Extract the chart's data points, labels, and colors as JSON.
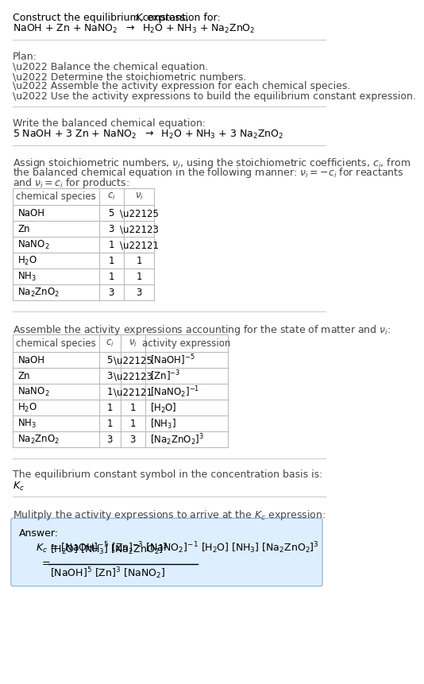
{
  "bg_color": "#ffffff",
  "answer_box_color": "#ddeeff",
  "answer_box_border": "#99bbdd",
  "table_line_color": "#bbbbbb",
  "text_color": "#000000",
  "gray_text_color": "#444444",
  "font_size": 9.0,
  "small_font_size": 8.5,
  "title1": "Construct the equilibrium constant, ",
  "title_K": "$K$",
  "title2": ", expression for:",
  "unbalanced_eq": "NaOH + Zn + NaNO$_2$  $\\rightarrow$  H$_2$O + NH$_3$ + Na$_2$ZnO$_2$",
  "plan_header": "Plan:",
  "plan_items": [
    "\\u2022 Balance the chemical equation.",
    "\\u2022 Determine the stoichiometric numbers.",
    "\\u2022 Assemble the activity expression for each chemical species.",
    "\\u2022 Use the activity expressions to build the equilibrium constant expression."
  ],
  "balanced_header": "Write the balanced chemical equation:",
  "balanced_eq": "5 NaOH + 3 Zn + NaNO$_2$  $\\rightarrow$  H$_2$O + NH$_3$ + 3 Na$_2$ZnO$_2$",
  "stoich_line1": "Assign stoichiometric numbers, $\\nu_i$, using the stoichiometric coefficients, $c_i$, from",
  "stoich_line2": "the balanced chemical equation in the following manner: $\\nu_i = -c_i$ for reactants",
  "stoich_line3": "and $\\nu_i = c_i$ for products:",
  "table1_headers": [
    "chemical species",
    "$c_i$",
    "$\\nu_i$"
  ],
  "table1_rows": [
    [
      "NaOH",
      "5",
      "\\u22125"
    ],
    [
      "Zn",
      "3",
      "\\u22123"
    ],
    [
      "NaNO$_2$",
      "1",
      "\\u22121"
    ],
    [
      "H$_2$O",
      "1",
      "1"
    ],
    [
      "NH$_3$",
      "1",
      "1"
    ],
    [
      "Na$_2$ZnO$_2$",
      "3",
      "3"
    ]
  ],
  "activity_intro": "Assemble the activity expressions accounting for the state of matter and $\\nu_i$:",
  "table2_headers": [
    "chemical species",
    "$c_i$",
    "$\\nu_i$",
    "activity expression"
  ],
  "table2_rows": [
    [
      "NaOH",
      "5",
      "\\u22125",
      "[NaOH]$^{-5}$"
    ],
    [
      "Zn",
      "3",
      "\\u22123",
      "[Zn]$^{-3}$"
    ],
    [
      "NaNO$_2$",
      "1",
      "\\u22121",
      "[NaNO$_2$]$^{-1}$"
    ],
    [
      "H$_2$O",
      "1",
      "1",
      "[H$_2$O]"
    ],
    [
      "NH$_3$",
      "1",
      "1",
      "[NH$_3$]"
    ],
    [
      "Na$_2$ZnO$_2$",
      "3",
      "3",
      "[Na$_2$ZnO$_2$]$^3$"
    ]
  ],
  "kc_symbol_text": "The equilibrium constant symbol in the concentration basis is:",
  "kc_symbol": "$K_c$",
  "multiply_text": "Mulitply the activity expressions to arrive at the $K_c$ expression:",
  "answer_label": "Answer:",
  "answer_line1": "$K_c$ = [NaOH]$^{-5}$ [Zn]$^{-3}$ [NaNO$_2$]$^{-1}$ [H$_2$O] [NH$_3$] [Na$_2$ZnO$_2$]$^3$",
  "answer_numerator": "[H$_2$O] [NH$_3$] [Na$_2$ZnO$_2$]$^3$",
  "answer_denominator": "[NaOH]$^5$ [Zn]$^3$ [NaNO$_2$]"
}
